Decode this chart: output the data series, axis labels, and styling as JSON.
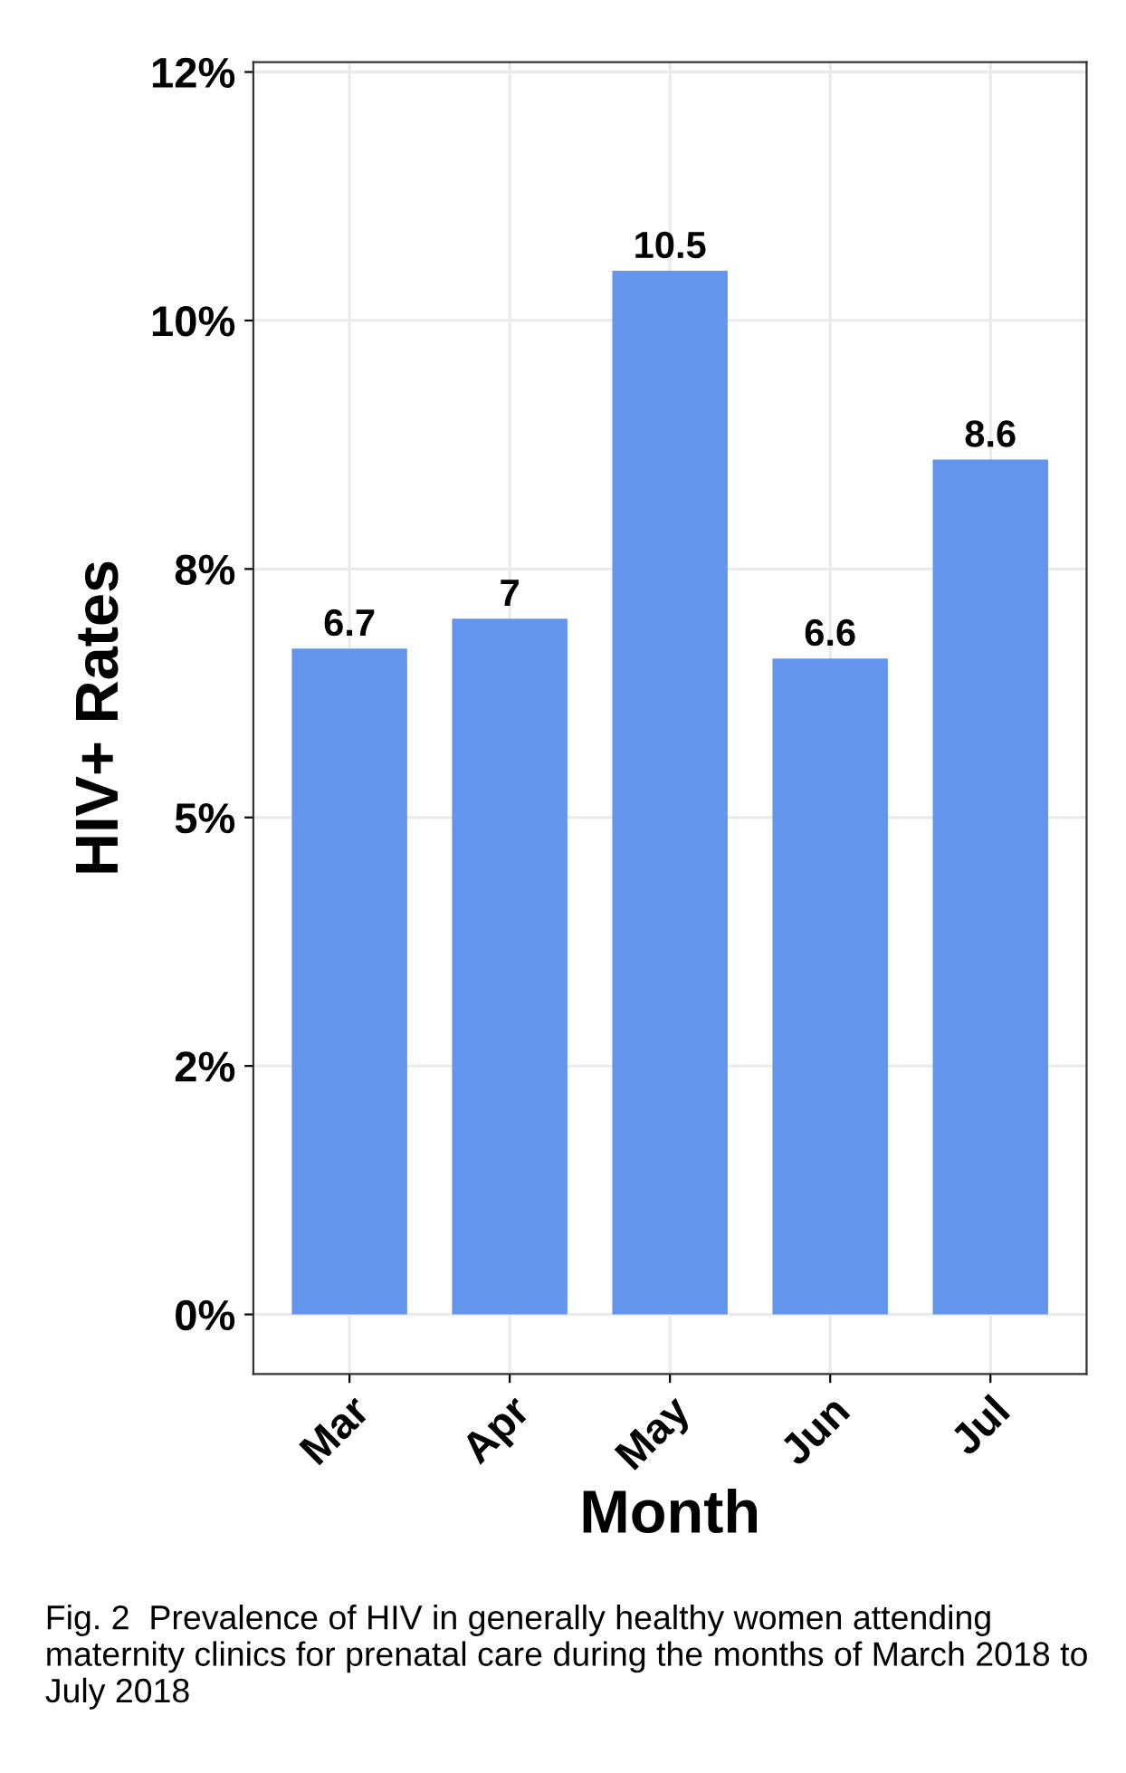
{
  "chart_data": {
    "type": "bar",
    "categories": [
      "Mar",
      "Apr",
      "May",
      "Jun",
      "Jul"
    ],
    "values": [
      6.7,
      7,
      10.5,
      6.6,
      8.6
    ],
    "color": "#6495ed",
    "data_labels": true,
    "xlabel": "Month",
    "ylabel": "HIV+ Rates",
    "ylim": [
      -0.6,
      12.6
    ],
    "yticks": [
      {
        "value": 0,
        "label": "0%"
      },
      {
        "value": 2.5,
        "label": "2%"
      },
      {
        "value": 5,
        "label": "5%"
      },
      {
        "value": 7.5,
        "label": "8%"
      },
      {
        "value": 10,
        "label": "10%"
      },
      {
        "value": 12.5,
        "label": "12%"
      }
    ],
    "grid": true,
    "annotations": [
      "Fig. 2  Prevalence of HIV in generally healthy women attending maternity clinics for prenatal care during the months of March 2018 to July 2018"
    ]
  }
}
